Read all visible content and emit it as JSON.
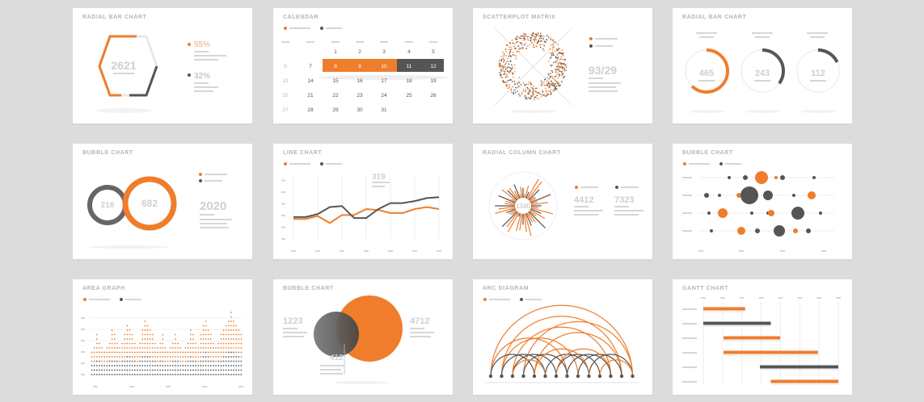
{
  "colors": {
    "orange": "#ef7d2c",
    "dark": "#555555",
    "light": "#d6d6d6",
    "background": "#dcdcdc"
  },
  "cards": {
    "radial_bar_1": {
      "title": "RADIAL BAR CHART",
      "center_value": "2621",
      "pct_a": "55%",
      "pct_b": "32%"
    },
    "calendar": {
      "title": "CALENDAR"
    },
    "scatterplot": {
      "title": "SCATTERPLOT MATRIX",
      "value": "93/29"
    },
    "radial_bar_2": {
      "title": "RADIAL BAR CHART",
      "values": [
        "465",
        "243",
        "112"
      ]
    },
    "bubble_1": {
      "title": "BUBBLE CHART",
      "left_value": "218",
      "right_value": "682",
      "year": "2020"
    },
    "line_chart": {
      "title": "LINE CHART",
      "annotation": "319"
    },
    "radial_column": {
      "title": "RADIAL COLUMN CHART",
      "center_value": "1340",
      "value_a": "4412",
      "value_b": "7323"
    },
    "bubble_2": {
      "title": "BUBBLE CHART"
    },
    "area_graph": {
      "title": "AREA GRAPH"
    },
    "bubble_3": {
      "title": "BUBBLE CHART",
      "value_a": "1223",
      "value_b": "4712",
      "value_c": "412"
    },
    "arc_diagram": {
      "title": "ARC DIAGRAM"
    },
    "gantt": {
      "title": "GANTT CHART"
    }
  },
  "chart_data": [
    {
      "type": "pie",
      "chart": "radial_bar_1",
      "title": "RADIAL BAR CHART",
      "values": [
        55,
        32
      ],
      "labels": [
        "55%",
        "32%"
      ],
      "center": "2621"
    },
    {
      "type": "table",
      "chart": "calendar",
      "title": "CALENDAR",
      "weeks": [
        [
          "",
          "",
          "1",
          "2",
          "3",
          "4",
          "5"
        ],
        [
          "6",
          "7",
          "8",
          "9",
          "10",
          "11",
          "12"
        ],
        [
          "13",
          "14",
          "15",
          "16",
          "17",
          "18",
          "19"
        ],
        [
          "20",
          "21",
          "22",
          "23",
          "24",
          "25",
          "26"
        ],
        [
          "27",
          "28",
          "29",
          "30",
          "31",
          "",
          ""
        ]
      ],
      "highlight_orange": [
        "8",
        "9",
        "10"
      ],
      "highlight_dark": [
        "11",
        "12"
      ]
    },
    {
      "type": "scatter",
      "chart": "scatterplot",
      "title": "SCATTERPLOT MATRIX",
      "label": "93/29"
    },
    {
      "type": "pie",
      "chart": "radial_bar_2",
      "title": "RADIAL BAR CHART",
      "rings": [
        {
          "label": "465",
          "fraction": 0.62,
          "color": "orange"
        },
        {
          "label": "243",
          "fraction": 0.35,
          "color": "dark"
        },
        {
          "label": "112",
          "fraction": 0.18,
          "color": "dark"
        }
      ]
    },
    {
      "type": "scatter",
      "chart": "bubble_1",
      "title": "BUBBLE CHART",
      "bubbles": [
        {
          "label": "218",
          "size": 218,
          "color": "dark"
        },
        {
          "label": "682",
          "size": 682,
          "color": "orange"
        }
      ],
      "year": "2020"
    },
    {
      "type": "line",
      "chart": "line_chart",
      "title": "LINE CHART",
      "x": [
        1,
        2,
        3,
        4,
        5,
        6,
        7,
        8,
        9,
        10,
        11,
        12,
        13
      ],
      "series": [
        {
          "values": [
            2.0,
            2.0,
            2.3,
            1.6,
            2.4,
            2.4,
            3.0,
            2.9,
            2.6,
            2.6,
            3.0,
            3.2,
            3.0
          ],
          "color": "orange"
        },
        {
          "values": [
            2.2,
            2.2,
            2.5,
            3.2,
            3.3,
            2.1,
            2.1,
            3.0,
            3.6,
            3.6,
            3.8,
            4.1,
            4.2
          ],
          "color": "dark"
        }
      ],
      "annotation": "319",
      "ylim": [
        0,
        6
      ]
    },
    {
      "type": "bar",
      "chart": "radial_column",
      "title": "RADIAL COLUMN CHART",
      "center": "1340",
      "labels": [
        "4412",
        "7323"
      ]
    },
    {
      "type": "scatter",
      "chart": "bubble_2",
      "title": "BUBBLE CHART",
      "rows": 4
    },
    {
      "type": "area",
      "chart": "area_graph",
      "title": "AREA GRAPH",
      "series": [
        {
          "color": "orange",
          "values": [
            3,
            4,
            6,
            5,
            4,
            3,
            4,
            5,
            7,
            6,
            5,
            4,
            5,
            6,
            8,
            7,
            6,
            5,
            4,
            5,
            7,
            9,
            8,
            7,
            6,
            5,
            4,
            5,
            6,
            4,
            3,
            4,
            5,
            6,
            5,
            4,
            3,
            4,
            5,
            7,
            6,
            5,
            4,
            6,
            8,
            9,
            7,
            6,
            5,
            4,
            5,
            6,
            7,
            8,
            9,
            10,
            9,
            8,
            7,
            6
          ]
        },
        {
          "color": "dark",
          "values": [
            2,
            2,
            3,
            3,
            2,
            2,
            2,
            3,
            3,
            3,
            3,
            2,
            3,
            3,
            4,
            4,
            3,
            3,
            2,
            3,
            4,
            4,
            4,
            4,
            3,
            3,
            2,
            3,
            3,
            2,
            2,
            2,
            3,
            3,
            3,
            2,
            2,
            2,
            3,
            4,
            3,
            3,
            2,
            3,
            4,
            5,
            4,
            3,
            3,
            2,
            3,
            3,
            4,
            4,
            5,
            5,
            5,
            4,
            4,
            3
          ]
        }
      ]
    },
    {
      "type": "scatter",
      "chart": "bubble_3",
      "title": "BUBBLE CHART",
      "labels": [
        "1223",
        "4712",
        "412"
      ]
    },
    {
      "type": "line",
      "chart": "arc_diagram",
      "title": "ARC DIAGRAM"
    },
    {
      "type": "bar",
      "chart": "gantt",
      "title": "GANTT CHART",
      "tasks": [
        {
          "start": 0.0,
          "end": 0.31,
          "color": "orange"
        },
        {
          "start": 0.0,
          "end": 0.5,
          "color": "dark"
        },
        {
          "start": 0.15,
          "end": 0.57,
          "color": "orange"
        },
        {
          "start": 0.15,
          "end": 0.85,
          "color": "orange"
        },
        {
          "start": 0.42,
          "end": 1.0,
          "color": "dark"
        },
        {
          "start": 0.5,
          "end": 1.0,
          "color": "orange"
        }
      ]
    }
  ]
}
